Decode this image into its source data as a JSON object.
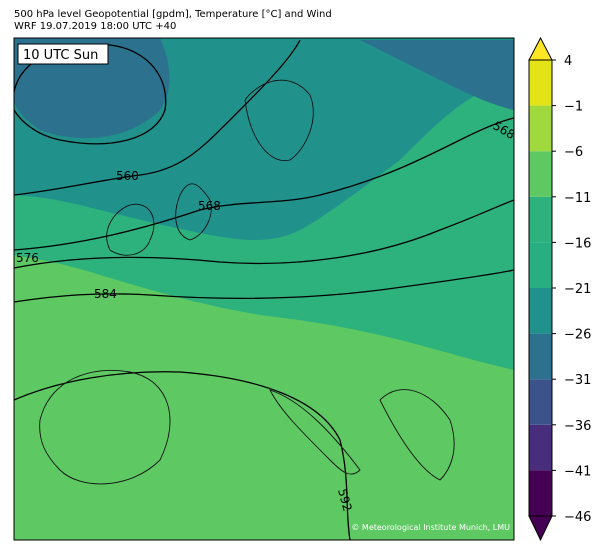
{
  "header": {
    "line1": "500 hPa level Geopotential [gpdm], Temperature [°C] and Wind",
    "line2": "WRF 19.07.2019 18:00 UTC +40"
  },
  "map": {
    "time_label": "10 UTC Sun",
    "credit": "© Meteorological Institute Munich, LMU",
    "contour_labels": [
      "560",
      "568",
      "568",
      "576",
      "584",
      "592"
    ]
  },
  "colorbar": {
    "lim": [
      -46,
      4
    ],
    "ticks": [
      {
        "value": -46,
        "label": "−46"
      },
      {
        "value": -41,
        "label": "−41"
      },
      {
        "value": -36,
        "label": "−36"
      },
      {
        "value": -31,
        "label": "−31"
      },
      {
        "value": -26,
        "label": "−26"
      },
      {
        "value": -21,
        "label": "−21"
      },
      {
        "value": -16,
        "label": "−16"
      },
      {
        "value": -11,
        "label": "−11"
      },
      {
        "value": -6,
        "label": "−6"
      },
      {
        "value": -1,
        "label": "−1"
      },
      4
    ],
    "colors": [
      "#440154",
      "#472d7b",
      "#3b528b",
      "#2c728e",
      "#21918c",
      "#28ae80",
      "#2db27d",
      "#5ec962",
      "#9fd93d",
      "#e2e418"
    ],
    "extend_low": "#440154",
    "extend_high": "#fde725"
  }
}
